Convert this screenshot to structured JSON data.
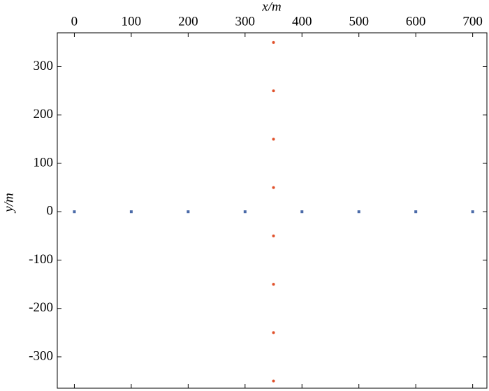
{
  "chart_data": {
    "type": "scatter",
    "xlabel": "x/m",
    "ylabel": "y/m",
    "xlim": [
      -30,
      725
    ],
    "ylim": [
      -365,
      370
    ],
    "xticks": [
      0,
      100,
      200,
      300,
      400,
      500,
      600,
      700
    ],
    "yticks": [
      -300,
      -200,
      -100,
      0,
      100,
      200,
      300
    ],
    "grid": false,
    "series": [
      {
        "color": "#4a6aa8",
        "marker": "square",
        "x": [
          0,
          100,
          200,
          300,
          400,
          500,
          600,
          700
        ],
        "y": [
          0,
          0,
          0,
          0,
          0,
          0,
          0,
          0
        ]
      },
      {
        "color": "#e0502a",
        "marker": "circle",
        "x": [
          350,
          350,
          350,
          350,
          350,
          350,
          350,
          350
        ],
        "y": [
          350,
          250,
          150,
          50,
          -50,
          -150,
          -250,
          -350
        ]
      }
    ]
  }
}
